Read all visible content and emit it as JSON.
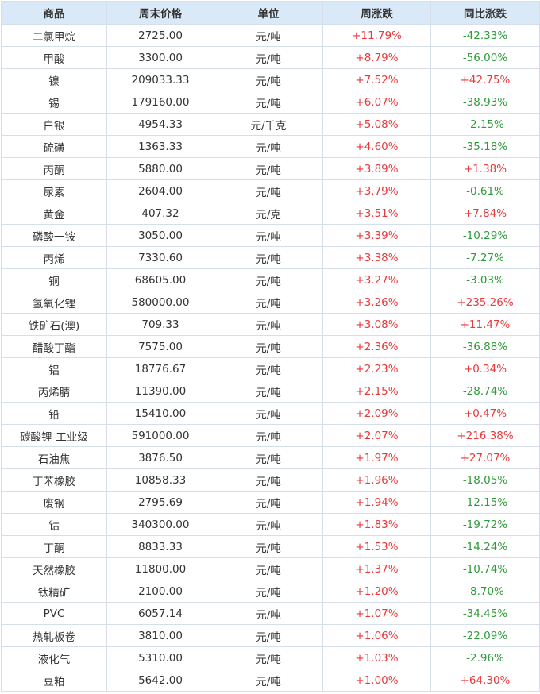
{
  "table": {
    "headers": [
      "商品",
      "周末价格",
      "单位",
      "周涨跌",
      "同比涨跌"
    ],
    "rows": [
      [
        "二氯甲烷",
        "2725.00",
        "元/吨",
        "+11.79%",
        "-42.33%"
      ],
      [
        "甲酸",
        "3300.00",
        "元/吨",
        "+8.79%",
        "-56.00%"
      ],
      [
        "镍",
        "209033.33",
        "元/吨",
        "+7.52%",
        "+42.75%"
      ],
      [
        "锡",
        "179160.00",
        "元/吨",
        "+6.07%",
        "-38.93%"
      ],
      [
        "白银",
        "4954.33",
        "元/千克",
        "+5.08%",
        "-2.15%"
      ],
      [
        "硫磺",
        "1363.33",
        "元/吨",
        "+4.60%",
        "-35.18%"
      ],
      [
        "丙酮",
        "5880.00",
        "元/吨",
        "+3.89%",
        "+1.38%"
      ],
      [
        "尿素",
        "2604.00",
        "元/吨",
        "+3.79%",
        "-0.61%"
      ],
      [
        "黄金",
        "407.32",
        "元/克",
        "+3.51%",
        "+7.84%"
      ],
      [
        "磷酸一铵",
        "3050.00",
        "元/吨",
        "+3.39%",
        "-10.29%"
      ],
      [
        "丙烯",
        "7330.60",
        "元/吨",
        "+3.38%",
        "-7.27%"
      ],
      [
        "铜",
        "68605.00",
        "元/吨",
        "+3.27%",
        "-3.03%"
      ],
      [
        "氢氧化锂",
        "580000.00",
        "元/吨",
        "+3.26%",
        "+235.26%"
      ],
      [
        "铁矿石(澳)",
        "709.33",
        "元/吨",
        "+3.08%",
        "+11.47%"
      ],
      [
        "醋酸丁酯",
        "7575.00",
        "元/吨",
        "+2.36%",
        "-36.88%"
      ],
      [
        "铝",
        "18776.67",
        "元/吨",
        "+2.23%",
        "+0.34%"
      ],
      [
        "丙烯腈",
        "11390.00",
        "元/吨",
        "+2.15%",
        "-28.74%"
      ],
      [
        "铅",
        "15410.00",
        "元/吨",
        "+2.09%",
        "+0.47%"
      ],
      [
        "碳酸锂-工业级",
        "591000.00",
        "元/吨",
        "+2.07%",
        "+216.38%"
      ],
      [
        "石油焦",
        "3876.50",
        "元/吨",
        "+1.97%",
        "+27.07%"
      ],
      [
        "丁苯橡胶",
        "10858.33",
        "元/吨",
        "+1.96%",
        "-18.05%"
      ],
      [
        "废钢",
        "2795.69",
        "元/吨",
        "+1.94%",
        "-12.15%"
      ],
      [
        "钴",
        "340300.00",
        "元/吨",
        "+1.83%",
        "-19.72%"
      ],
      [
        "丁酮",
        "8833.33",
        "元/吨",
        "+1.53%",
        "-14.24%"
      ],
      [
        "天然橡胶",
        "11800.00",
        "元/吨",
        "+1.37%",
        "-10.74%"
      ],
      [
        "钛精矿",
        "2100.00",
        "元/吨",
        "+1.20%",
        "-8.70%"
      ],
      [
        "PVC",
        "6057.14",
        "元/吨",
        "+1.07%",
        "-34.45%"
      ],
      [
        "热轧板卷",
        "3810.00",
        "元/吨",
        "+1.06%",
        "-22.09%"
      ],
      [
        "液化气",
        "5310.00",
        "元/吨",
        "+1.03%",
        "-2.96%"
      ],
      [
        "豆粕",
        "5642.00",
        "元/吨",
        "+1.00%",
        "+64.30%"
      ]
    ]
  },
  "colors": {
    "header_bg": "#dae9f8",
    "border": "#d6dfe9",
    "text": "#333333",
    "positive": "#e8393b",
    "negative": "#2e9b3a"
  }
}
